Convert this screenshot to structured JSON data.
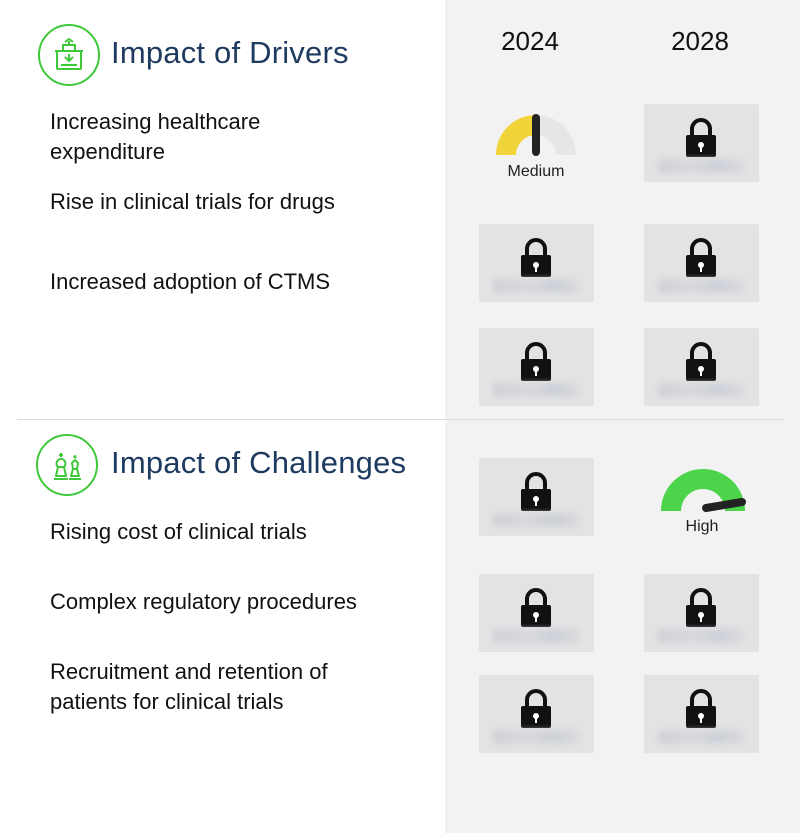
{
  "columns": {
    "year_1": "2024",
    "year_2": "2028"
  },
  "drivers": {
    "title": "Impact of Drivers",
    "icon": "money-bag-icon",
    "items": [
      "Increasing healthcare expenditure",
      "Rise in clinical trials for drugs",
      "Increased adoption of CTMS"
    ],
    "gauge_2024_row1": {
      "label": "Medium",
      "level": 0.5,
      "color": "#f0d43a"
    }
  },
  "challenges": {
    "title": "Impact of Challenges",
    "icon": "chess-pieces-icon",
    "items": [
      "Rising cost of clinical trials",
      "Complex regulatory procedures",
      "Recruitment and retention of patients for clinical trials"
    ],
    "gauge_2028_row1": {
      "label": "High",
      "level": 0.85,
      "color": "#4cd44a"
    }
  },
  "colors": {
    "accent_green": "#3fc93a",
    "title_navy": "#1e3a5f",
    "panel_gray": "#f2f2f2"
  }
}
